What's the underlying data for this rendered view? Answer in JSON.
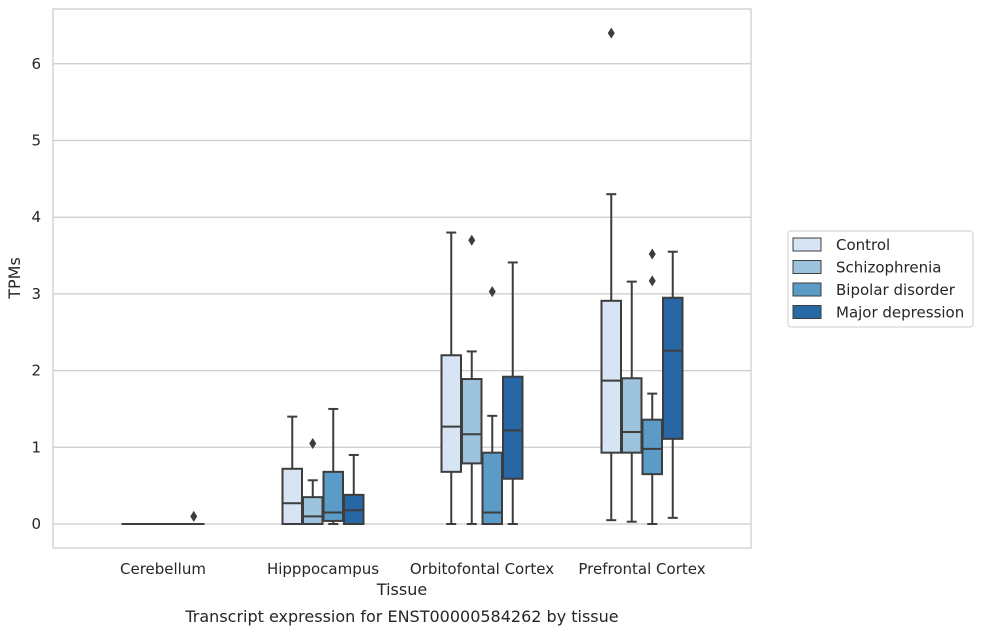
{
  "chart_data": {
    "type": "box",
    "title": "",
    "caption": "Transcript expression for ENST00000584262 by tissue",
    "xlabel": "Tissue",
    "ylabel": "TPMs",
    "ylim": [
      -0.3,
      6.7
    ],
    "yticks": [
      0,
      1,
      2,
      3,
      4,
      5,
      6
    ],
    "grid": true,
    "legend_position": "right",
    "categories": [
      "Cerebellum",
      "Hipppocampus",
      "Orbitofontal Cortex",
      "Prefrontal Cortex"
    ],
    "series": [
      {
        "name": "Control",
        "color": "#d6e4f3",
        "boxes": [
          {
            "whislo": 0,
            "q1": 0,
            "med": 0,
            "q3": 0,
            "whishi": 0,
            "fliers": []
          },
          {
            "whislo": 0,
            "q1": 0,
            "med": 0.27,
            "q3": 0.72,
            "whishi": 1.4,
            "fliers": []
          },
          {
            "whislo": 0,
            "q1": 0.68,
            "med": 1.27,
            "q3": 2.2,
            "whishi": 3.8,
            "fliers": []
          },
          {
            "whislo": 0.05,
            "q1": 0.93,
            "med": 1.87,
            "q3": 2.91,
            "whishi": 4.3,
            "fliers": [
              6.4
            ]
          }
        ]
      },
      {
        "name": "Schizophrenia",
        "color": "#9dc3dd",
        "boxes": [
          {
            "whislo": 0,
            "q1": 0,
            "med": 0,
            "q3": 0,
            "whishi": 0,
            "fliers": []
          },
          {
            "whislo": 0,
            "q1": 0,
            "med": 0.1,
            "q3": 0.35,
            "whishi": 0.57,
            "fliers": [
              1.05
            ]
          },
          {
            "whislo": 0,
            "q1": 0.79,
            "med": 1.17,
            "q3": 1.89,
            "whishi": 2.25,
            "fliers": [
              3.7
            ]
          },
          {
            "whislo": 0.03,
            "q1": 0.93,
            "med": 1.2,
            "q3": 1.9,
            "whishi": 3.16,
            "fliers": []
          }
        ]
      },
      {
        "name": "Bipolar disorder",
        "color": "#5b9bc8",
        "boxes": [
          {
            "whislo": 0,
            "q1": 0,
            "med": 0,
            "q3": 0,
            "whishi": 0,
            "fliers": []
          },
          {
            "whislo": 0,
            "q1": 0.04,
            "med": 0.15,
            "q3": 0.68,
            "whishi": 1.5,
            "fliers": []
          },
          {
            "whislo": 0,
            "q1": 0,
            "med": 0.15,
            "q3": 0.93,
            "whishi": 1.41,
            "fliers": [
              3.03
            ]
          },
          {
            "whislo": 0,
            "q1": 0.65,
            "med": 0.98,
            "q3": 1.36,
            "whishi": 1.7,
            "fliers": [
              3.17,
              3.52
            ]
          }
        ]
      },
      {
        "name": "Major depression",
        "color": "#2767a6",
        "boxes": [
          {
            "whislo": 0,
            "q1": 0,
            "med": 0,
            "q3": 0,
            "whishi": 0,
            "fliers": [
              0.1
            ]
          },
          {
            "whislo": 0,
            "q1": 0,
            "med": 0.18,
            "q3": 0.38,
            "whishi": 0.9,
            "fliers": []
          },
          {
            "whislo": 0,
            "q1": 0.59,
            "med": 1.22,
            "q3": 1.92,
            "whishi": 3.41,
            "fliers": []
          },
          {
            "whislo": 0.08,
            "q1": 1.11,
            "med": 2.26,
            "q3": 2.95,
            "whishi": 3.55,
            "fliers": []
          }
        ]
      }
    ]
  }
}
